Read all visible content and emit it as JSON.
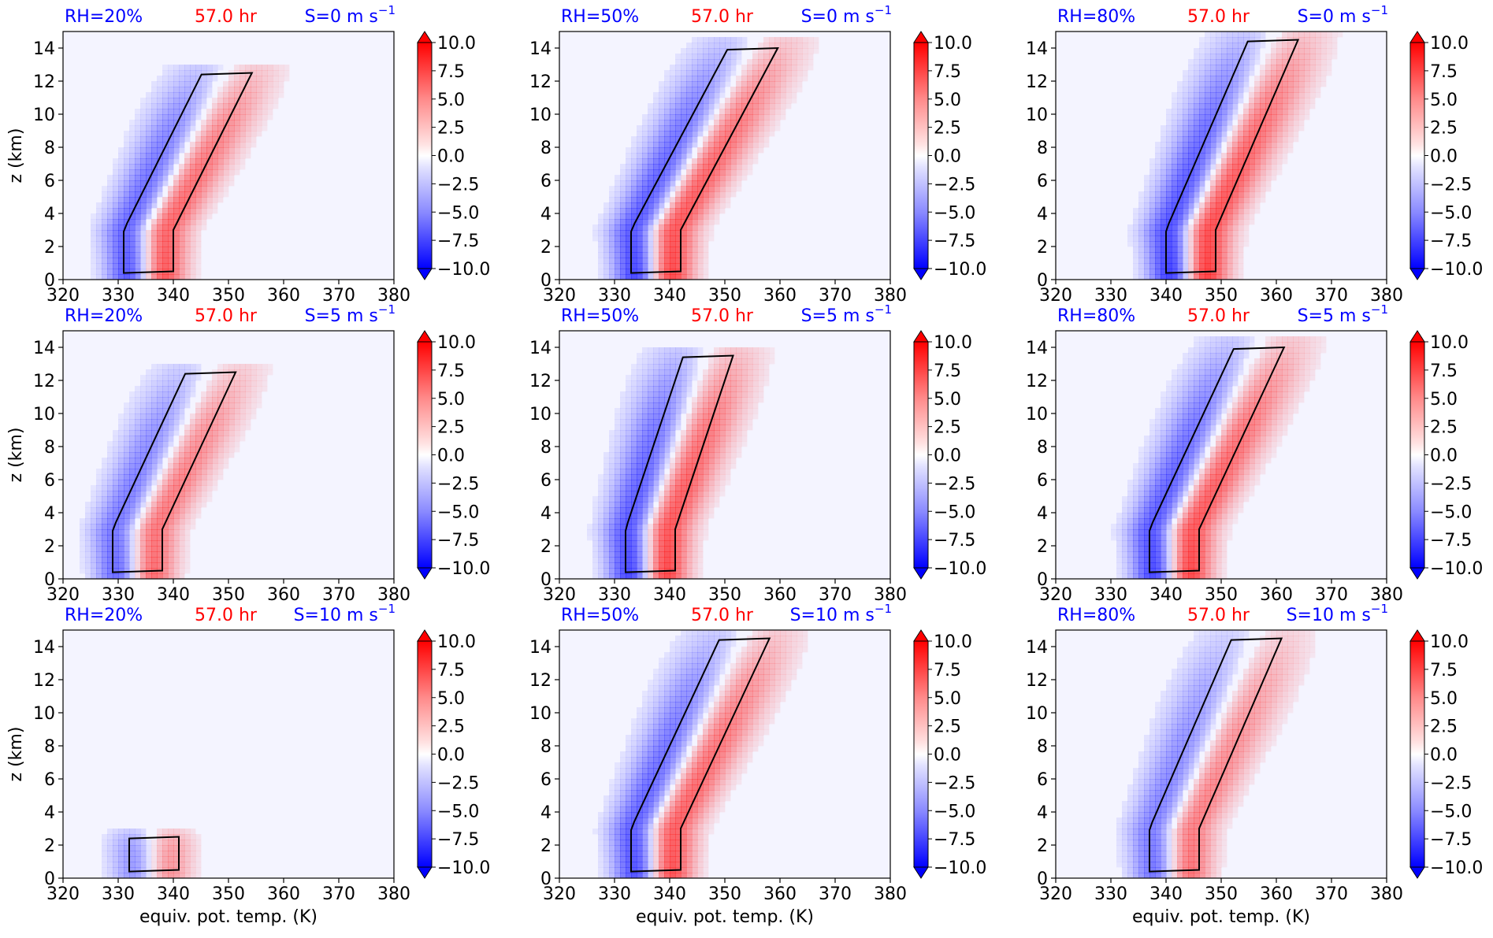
{
  "figure": {
    "ylabel": "z (km)",
    "xlabel": "equiv. pot. temp. (K)",
    "colorbar_ticks": [
      "10.0",
      "7.5",
      "5.0",
      "2.5",
      "0.0",
      "−2.5",
      "−5.0",
      "−7.5",
      "−10.0"
    ],
    "x_ticks": [
      "320",
      "330",
      "340",
      "350",
      "360",
      "370",
      "380"
    ],
    "y_ticks": [
      "0",
      "2",
      "4",
      "6",
      "8",
      "10",
      "12",
      "14"
    ],
    "colors": {
      "negative": "#0000ff",
      "positive": "#ff0000",
      "background": "#f4f4ff",
      "contour": "#000000",
      "rh_title": "#0000ff",
      "time_title": "#ff0000",
      "shear_title": "#0000ff"
    }
  },
  "chart_data": [
    {
      "type": "heatmap",
      "rh": "RH=20%",
      "time": "57.0 hr",
      "shear": "S=0 m s",
      "shear_exp": "−1",
      "xlim": [
        320,
        380
      ],
      "ylim": [
        0,
        15
      ],
      "clim": [
        -10,
        10
      ],
      "centroid_x": 335,
      "lean": 1.5,
      "top_km": 12.5,
      "intensity": 0.85
    },
    {
      "type": "heatmap",
      "rh": "RH=50%",
      "time": "57.0 hr",
      "shear": "S=0 m s",
      "shear_exp": "−1",
      "xlim": [
        320,
        380
      ],
      "ylim": [
        0,
        15
      ],
      "clim": [
        -10,
        10
      ],
      "centroid_x": 337,
      "lean": 1.6,
      "top_km": 14.0,
      "intensity": 0.95
    },
    {
      "type": "heatmap",
      "rh": "RH=80%",
      "time": "57.0 hr",
      "shear": "S=0 m s",
      "shear_exp": "−1",
      "xlim": [
        320,
        380
      ],
      "ylim": [
        0,
        15
      ],
      "clim": [
        -10,
        10
      ],
      "centroid_x": 344,
      "lean": 1.3,
      "top_km": 14.5,
      "intensity": 1.0
    },
    {
      "type": "heatmap",
      "rh": "RH=20%",
      "time": "57.0 hr",
      "shear": "S=5 m s",
      "shear_exp": "−1",
      "xlim": [
        320,
        380
      ],
      "ylim": [
        0,
        15
      ],
      "clim": [
        -10,
        10
      ],
      "centroid_x": 333,
      "lean": 1.4,
      "top_km": 12.5,
      "intensity": 0.75
    },
    {
      "type": "heatmap",
      "rh": "RH=50%",
      "time": "57.0 hr",
      "shear": "S=5 m s",
      "shear_exp": "−1",
      "xlim": [
        320,
        380
      ],
      "ylim": [
        0,
        15
      ],
      "clim": [
        -10,
        10
      ],
      "centroid_x": 336,
      "lean": 1.0,
      "top_km": 13.5,
      "intensity": 0.95
    },
    {
      "type": "heatmap",
      "rh": "RH=80%",
      "time": "57.0 hr",
      "shear": "S=5 m s",
      "shear_exp": "−1",
      "xlim": [
        320,
        380
      ],
      "ylim": [
        0,
        15
      ],
      "clim": [
        -10,
        10
      ],
      "centroid_x": 341,
      "lean": 1.4,
      "top_km": 14.0,
      "intensity": 0.95
    },
    {
      "type": "heatmap",
      "rh": "RH=20%",
      "time": "57.0 hr",
      "shear": "S=10 m s",
      "shear_exp": "−1",
      "xlim": [
        320,
        380
      ],
      "ylim": [
        0,
        15
      ],
      "clim": [
        -10,
        10
      ],
      "centroid_x": 336,
      "lean": 0.8,
      "top_km": 2.5,
      "intensity": 0.5
    },
    {
      "type": "heatmap",
      "rh": "RH=50%",
      "time": "57.0 hr",
      "shear": "S=10 m s",
      "shear_exp": "−1",
      "xlim": [
        320,
        380
      ],
      "ylim": [
        0,
        15
      ],
      "clim": [
        -10,
        10
      ],
      "centroid_x": 337,
      "lean": 1.4,
      "top_km": 14.5,
      "intensity": 0.9
    },
    {
      "type": "heatmap",
      "rh": "RH=80%",
      "time": "57.0 hr",
      "shear": "S=10 m s",
      "shear_exp": "−1",
      "xlim": [
        320,
        380
      ],
      "ylim": [
        0,
        15
      ],
      "clim": [
        -10,
        10
      ],
      "centroid_x": 341,
      "lean": 1.3,
      "top_km": 14.5,
      "intensity": 0.7
    }
  ]
}
